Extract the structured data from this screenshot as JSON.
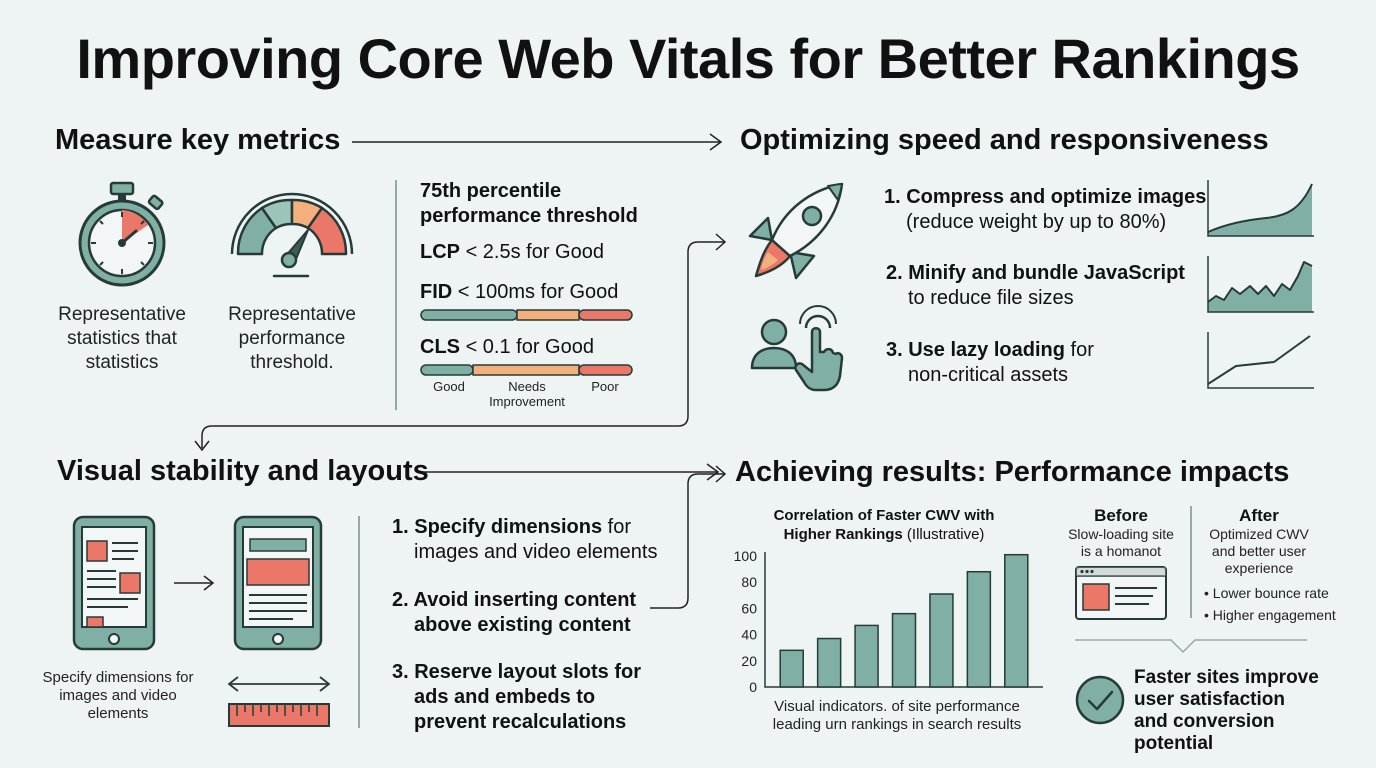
{
  "title": "Improving Core Web Vitals for Better Rankings",
  "measure": {
    "heading": "Measure key metrics",
    "icons": [
      "stopwatch-icon",
      "gauge-icon"
    ],
    "stopwatch_caption": "Representative statistics that statistics",
    "gauge_caption": "Representative performance threshold.",
    "threshold": {
      "heading": "75th percentile performance threshold",
      "lcp_metric": "LCP",
      "lcp_rest": "< 2.5s for Good",
      "fid_metric": "FID",
      "fid_rest": "< 100ms for Good",
      "cls_metric": "CLS",
      "cls_rest": "< 0.1 for Good",
      "scale": {
        "good": "Good",
        "needs": "Needs Improvement",
        "poor": "Poor"
      }
    }
  },
  "speed": {
    "heading": "Optimizing speed and responsiveness",
    "icons": [
      "rocket-icon",
      "touch-hand-icon"
    ],
    "step1_bold": "1. Compress and optimize images",
    "step1_rest": "(reduce weight by up to 80%)",
    "step2_bold": "2. Minify and bundle JavaScript",
    "step2_rest": "to reduce file sizes",
    "step3_bold": "3. Use lazy loading",
    "step3_mid": " for",
    "step3_rest": "non-critical assets"
  },
  "stability": {
    "heading": "Visual stability and layouts",
    "icons": [
      "phone-before-icon",
      "phone-after-icon",
      "ruler-icon"
    ],
    "caption": "Specify dimensions for images and video elements",
    "step1_bold": "1. Specify dimensions",
    "step1_mid": " for",
    "step1_rest": "images and video elements",
    "step2_bold": "2. Avoid inserting content",
    "step2_rest": "above existing content",
    "step3_bold": "3. Reserve layout slots for",
    "step3_rest1": "ads and embeds to",
    "step3_rest2": "prevent recalculations"
  },
  "results": {
    "heading": "Achieving results: Performance impacts",
    "before_title": "Before",
    "before_desc": "Slow-loading site is a homanot",
    "after_title": "After",
    "after_desc": "Optimized CWV and better user experience",
    "after_bullets": [
      "• Lower bounce rate",
      "• Higher engagement"
    ],
    "conclusion": "Faster sites improve user satisfaction and conversion potential",
    "icons": [
      "browser-window-icon",
      "check-circle-icon"
    ]
  },
  "chart_data": {
    "type": "bar",
    "title_bold": "Correlation of Faster CWV with",
    "title_bold2": "Higher Rankings",
    "title_rest": " (Illustrative)",
    "values": [
      28,
      37,
      47,
      56,
      71,
      88,
      101
    ],
    "ylim": [
      0,
      100
    ],
    "yticks": [
      "0",
      "20",
      "40",
      "60",
      "80",
      "100"
    ],
    "caption_line1": "Visual indicators. of site performance",
    "caption_line2": "leading urn rankings in search results",
    "bar_color": "#7fafa5",
    "grid": false
  },
  "colors": {
    "teal": "#7fafa5",
    "teal_dark": "#3d5c58",
    "orange": "#f4b07c",
    "coral": "#ea7767",
    "grey": "#9aa7a7"
  }
}
